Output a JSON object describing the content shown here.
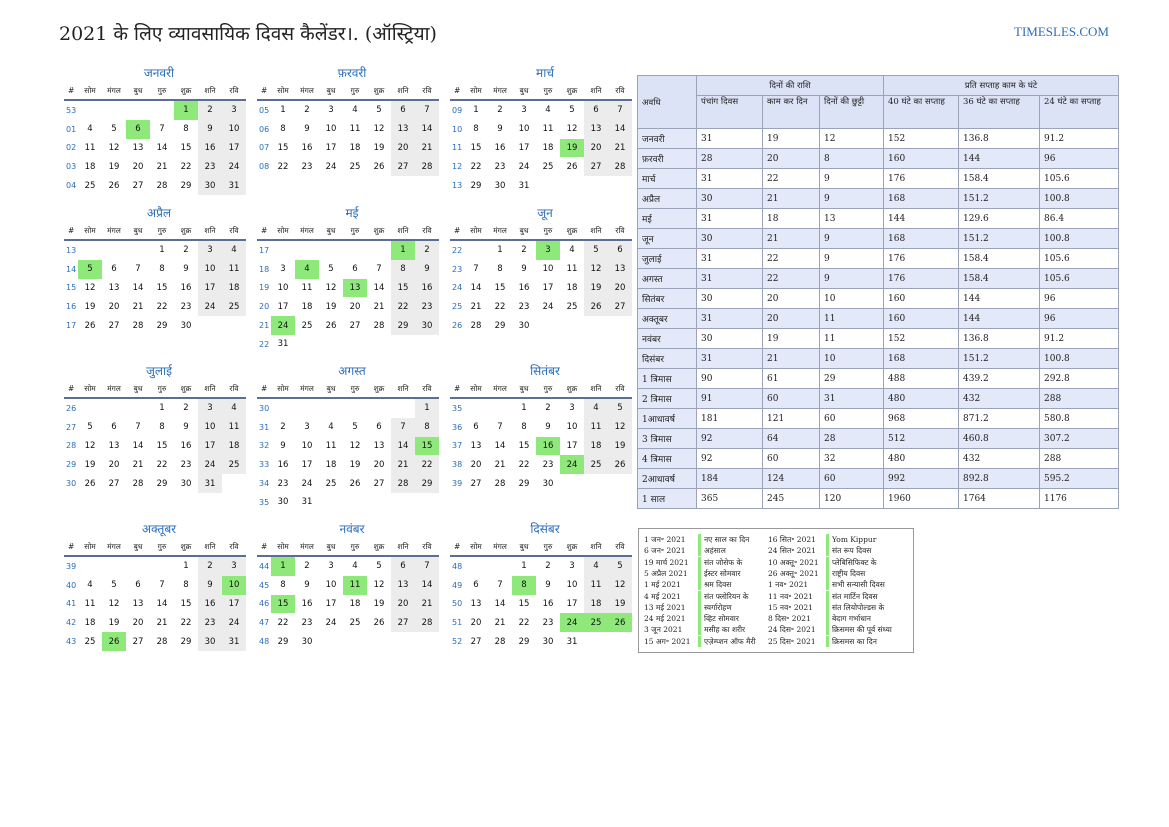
{
  "title": "2021 के लिए व्यावसायिक दिवस कैलेंडर।. (ऑस्ट्रिया)",
  "site": "TIMESLES.COM",
  "dayHeaders": [
    "#",
    "सोम",
    "मंगल",
    "बुध",
    "गुरु",
    "शुक्र",
    "शनि",
    "रवि"
  ],
  "months": [
    {
      "name": "जनवरी",
      "weeks": [
        [
          53,
          "",
          "",
          "",
          "",
          "1",
          "2",
          "3"
        ],
        [
          "01",
          "4",
          "5",
          "6",
          "7",
          "8",
          "9",
          "10"
        ],
        [
          "02",
          "11",
          "12",
          "13",
          "14",
          "15",
          "16",
          "17"
        ],
        [
          "03",
          "18",
          "19",
          "20",
          "21",
          "22",
          "23",
          "24"
        ],
        [
          "04",
          "25",
          "26",
          "27",
          "28",
          "29",
          "30",
          "31"
        ]
      ],
      "holidays": [
        "1",
        "6"
      ]
    },
    {
      "name": "फ़रवरी",
      "weeks": [
        [
          "05",
          "1",
          "2",
          "3",
          "4",
          "5",
          "6",
          "7"
        ],
        [
          "06",
          "8",
          "9",
          "10",
          "11",
          "12",
          "13",
          "14"
        ],
        [
          "07",
          "15",
          "16",
          "17",
          "18",
          "19",
          "20",
          "21"
        ],
        [
          "08",
          "22",
          "23",
          "24",
          "25",
          "26",
          "27",
          "28"
        ]
      ],
      "holidays": []
    },
    {
      "name": "मार्च",
      "weeks": [
        [
          "09",
          "1",
          "2",
          "3",
          "4",
          "5",
          "6",
          "7"
        ],
        [
          "10",
          "8",
          "9",
          "10",
          "11",
          "12",
          "13",
          "14"
        ],
        [
          "11",
          "15",
          "16",
          "17",
          "18",
          "19",
          "20",
          "21"
        ],
        [
          "12",
          "22",
          "23",
          "24",
          "25",
          "26",
          "27",
          "28"
        ],
        [
          "13",
          "29",
          "30",
          "31",
          "",
          "",
          "",
          ""
        ]
      ],
      "holidays": [
        "19"
      ]
    },
    {
      "name": "अप्रैल",
      "weeks": [
        [
          "13",
          "",
          "",
          "",
          "1",
          "2",
          "3",
          "4"
        ],
        [
          "14",
          "5",
          "6",
          "7",
          "8",
          "9",
          "10",
          "11"
        ],
        [
          "15",
          "12",
          "13",
          "14",
          "15",
          "16",
          "17",
          "18"
        ],
        [
          "16",
          "19",
          "20",
          "21",
          "22",
          "23",
          "24",
          "25"
        ],
        [
          "17",
          "26",
          "27",
          "28",
          "29",
          "30",
          "",
          ""
        ]
      ],
      "holidays": [
        "5"
      ]
    },
    {
      "name": "मई",
      "weeks": [
        [
          "17",
          "",
          "",
          "",
          "",
          "",
          "1",
          "2"
        ],
        [
          "18",
          "3",
          "4",
          "5",
          "6",
          "7",
          "8",
          "9"
        ],
        [
          "19",
          "10",
          "11",
          "12",
          "13",
          "14",
          "15",
          "16"
        ],
        [
          "20",
          "17",
          "18",
          "19",
          "20",
          "21",
          "22",
          "23"
        ],
        [
          "21",
          "24",
          "25",
          "26",
          "27",
          "28",
          "29",
          "30"
        ],
        [
          "22",
          "31",
          "",
          "",
          "",
          "",
          "",
          ""
        ]
      ],
      "holidays": [
        "1",
        "4",
        "13",
        "24"
      ]
    },
    {
      "name": "जून",
      "weeks": [
        [
          "22",
          "",
          "1",
          "2",
          "3",
          "4",
          "5",
          "6"
        ],
        [
          "23",
          "7",
          "8",
          "9",
          "10",
          "11",
          "12",
          "13"
        ],
        [
          "24",
          "14",
          "15",
          "16",
          "17",
          "18",
          "19",
          "20"
        ],
        [
          "25",
          "21",
          "22",
          "23",
          "24",
          "25",
          "26",
          "27"
        ],
        [
          "26",
          "28",
          "29",
          "30",
          "",
          "",
          "",
          ""
        ]
      ],
      "holidays": [
        "3"
      ]
    },
    {
      "name": "जुलाई",
      "weeks": [
        [
          "26",
          "",
          "",
          "",
          "1",
          "2",
          "3",
          "4"
        ],
        [
          "27",
          "5",
          "6",
          "7",
          "8",
          "9",
          "10",
          "11"
        ],
        [
          "28",
          "12",
          "13",
          "14",
          "15",
          "16",
          "17",
          "18"
        ],
        [
          "29",
          "19",
          "20",
          "21",
          "22",
          "23",
          "24",
          "25"
        ],
        [
          "30",
          "26",
          "27",
          "28",
          "29",
          "30",
          "31",
          ""
        ]
      ],
      "holidays": []
    },
    {
      "name": "अगस्त",
      "weeks": [
        [
          "30",
          "",
          "",
          "",
          "",
          "",
          "",
          "1"
        ],
        [
          "31",
          "2",
          "3",
          "4",
          "5",
          "6",
          "7",
          "8"
        ],
        [
          "32",
          "9",
          "10",
          "11",
          "12",
          "13",
          "14",
          "15"
        ],
        [
          "33",
          "16",
          "17",
          "18",
          "19",
          "20",
          "21",
          "22"
        ],
        [
          "34",
          "23",
          "24",
          "25",
          "26",
          "27",
          "28",
          "29"
        ],
        [
          "35",
          "30",
          "31",
          "",
          "",
          "",
          "",
          ""
        ]
      ],
      "holidays": [
        "15"
      ]
    },
    {
      "name": "सितंबर",
      "weeks": [
        [
          "35",
          "",
          "",
          "1",
          "2",
          "3",
          "4",
          "5"
        ],
        [
          "36",
          "6",
          "7",
          "8",
          "9",
          "10",
          "11",
          "12"
        ],
        [
          "37",
          "13",
          "14",
          "15",
          "16",
          "17",
          "18",
          "19"
        ],
        [
          "38",
          "20",
          "21",
          "22",
          "23",
          "24",
          "25",
          "26"
        ],
        [
          "39",
          "27",
          "28",
          "29",
          "30",
          "",
          "",
          ""
        ]
      ],
      "holidays": [
        "16",
        "24"
      ]
    },
    {
      "name": "अक्तूबर",
      "weeks": [
        [
          "39",
          "",
          "",
          "",
          "",
          "1",
          "2",
          "3"
        ],
        [
          "40",
          "4",
          "5",
          "6",
          "7",
          "8",
          "9",
          "10"
        ],
        [
          "41",
          "11",
          "12",
          "13",
          "14",
          "15",
          "16",
          "17"
        ],
        [
          "42",
          "18",
          "19",
          "20",
          "21",
          "22",
          "23",
          "24"
        ],
        [
          "43",
          "25",
          "26",
          "27",
          "28",
          "29",
          "30",
          "31"
        ]
      ],
      "holidays": [
        "10",
        "26"
      ]
    },
    {
      "name": "नवंबर",
      "weeks": [
        [
          "44",
          "1",
          "2",
          "3",
          "4",
          "5",
          "6",
          "7"
        ],
        [
          "45",
          "8",
          "9",
          "10",
          "11",
          "12",
          "13",
          "14"
        ],
        [
          "46",
          "15",
          "16",
          "17",
          "18",
          "19",
          "20",
          "21"
        ],
        [
          "47",
          "22",
          "23",
          "24",
          "25",
          "26",
          "27",
          "28"
        ],
        [
          "48",
          "29",
          "30",
          "",
          "",
          "",
          "",
          ""
        ]
      ],
      "holidays": [
        "1",
        "11",
        "15"
      ]
    },
    {
      "name": "दिसंबर",
      "weeks": [
        [
          "48",
          "",
          "",
          "1",
          "2",
          "3",
          "4",
          "5"
        ],
        [
          "49",
          "6",
          "7",
          "8",
          "9",
          "10",
          "11",
          "12"
        ],
        [
          "50",
          "13",
          "14",
          "15",
          "16",
          "17",
          "18",
          "19"
        ],
        [
          "51",
          "20",
          "21",
          "22",
          "23",
          "24",
          "25",
          "26"
        ],
        [
          "52",
          "27",
          "28",
          "29",
          "30",
          "31",
          "",
          ""
        ]
      ],
      "holidays": [
        "8",
        "24",
        "25",
        "26"
      ]
    }
  ],
  "stats": {
    "period_header": "अवधि",
    "days_group": "दिनों की राशि",
    "hours_group": "प्रति सप्ताह काम के घंटे",
    "sub_headers": [
      "पंचांग दिवस",
      "काम कर दिन",
      "दिनों की छुट्टी",
      "40 घंटे का सप्ताह",
      "36 घंटे का सप्ताह",
      "24 घंटे का सप्ताह"
    ],
    "rows": [
      [
        "जनवरी",
        "31",
        "19",
        "12",
        "152",
        "136.8",
        "91.2"
      ],
      [
        "फ़रवरी",
        "28",
        "20",
        "8",
        "160",
        "144",
        "96"
      ],
      [
        "मार्च",
        "31",
        "22",
        "9",
        "176",
        "158.4",
        "105.6"
      ],
      [
        "अप्रैल",
        "30",
        "21",
        "9",
        "168",
        "151.2",
        "100.8"
      ],
      [
        "मई",
        "31",
        "18",
        "13",
        "144",
        "129.6",
        "86.4"
      ],
      [
        "जून",
        "30",
        "21",
        "9",
        "168",
        "151.2",
        "100.8"
      ],
      [
        "जुलाई",
        "31",
        "22",
        "9",
        "176",
        "158.4",
        "105.6"
      ],
      [
        "अगस्त",
        "31",
        "22",
        "9",
        "176",
        "158.4",
        "105.6"
      ],
      [
        "सितंबर",
        "30",
        "20",
        "10",
        "160",
        "144",
        "96"
      ],
      [
        "अक्तूबर",
        "31",
        "20",
        "11",
        "160",
        "144",
        "96"
      ],
      [
        "नवंबर",
        "30",
        "19",
        "11",
        "152",
        "136.8",
        "91.2"
      ],
      [
        "दिसंबर",
        "31",
        "21",
        "10",
        "168",
        "151.2",
        "100.8"
      ],
      [
        "1 त्रिमास",
        "90",
        "61",
        "29",
        "488",
        "439.2",
        "292.8"
      ],
      [
        "2 त्रिमास",
        "91",
        "60",
        "31",
        "480",
        "432",
        "288"
      ],
      [
        "1आधावर्ष",
        "181",
        "121",
        "60",
        "968",
        "871.2",
        "580.8"
      ],
      [
        "3 त्रिमास",
        "92",
        "64",
        "28",
        "512",
        "460.8",
        "307.2"
      ],
      [
        "4 त्रिमास",
        "92",
        "60",
        "32",
        "480",
        "432",
        "288"
      ],
      [
        "2आधावर्ष",
        "184",
        "124",
        "60",
        "992",
        "892.8",
        "595.2"
      ],
      [
        "1 साल",
        "365",
        "245",
        "120",
        "1960",
        "1764",
        "1176"
      ]
    ]
  },
  "holiday_list": [
    [
      "1 जन॰ 2021",
      "नए साल का दिन",
      "16 सित॰ 2021",
      "Yom Kippur"
    ],
    [
      "6 जन॰ 2021",
      "अहंसाल",
      "24 सित॰ 2021",
      "संत रूप दिवस"
    ],
    [
      "19 मार्च 2021",
      "संत जोसेफ के",
      "10 अक्तू॰ 2021",
      "प्लेबिसिफिक्ट के"
    ],
    [
      "5 अप्रैल 2021",
      "ईस्टर सोमवार",
      "26 अक्तू॰ 2021",
      "राष्ट्रीय दिवस"
    ],
    [
      "1 मई 2021",
      "श्रम दिवस",
      "1 नव॰ 2021",
      "सभी सन्यासी दिवस"
    ],
    [
      "4 मई 2021",
      "संत फ्लोरियन के",
      "11 नव॰ 2021",
      "संत मार्टिन दिवस"
    ],
    [
      "13 मई 2021",
      "स्वर्गारोहण",
      "15 नव॰ 2021",
      "संत लियोपोल्डस के"
    ],
    [
      "24 मई 2021",
      "व्हिट सोमवार",
      "8 दिस॰ 2021",
      "बेदाग गर्भाधान"
    ],
    [
      "3 जून 2021",
      "मसीह का शरीर",
      "24 दिस॰ 2021",
      "क्रिसमस की पूर्व संध्या"
    ],
    [
      "15 अग॰ 2021",
      "एज़ेम्प्शन ऑफ मैरी",
      "25 दिस॰ 2021",
      "क्रिसमस का दिन"
    ]
  ],
  "colors": {
    "accent": "#2a6ebb",
    "holiday": "#8fe87a",
    "weekend": "#ececec",
    "table_header": "#dde3f7"
  }
}
